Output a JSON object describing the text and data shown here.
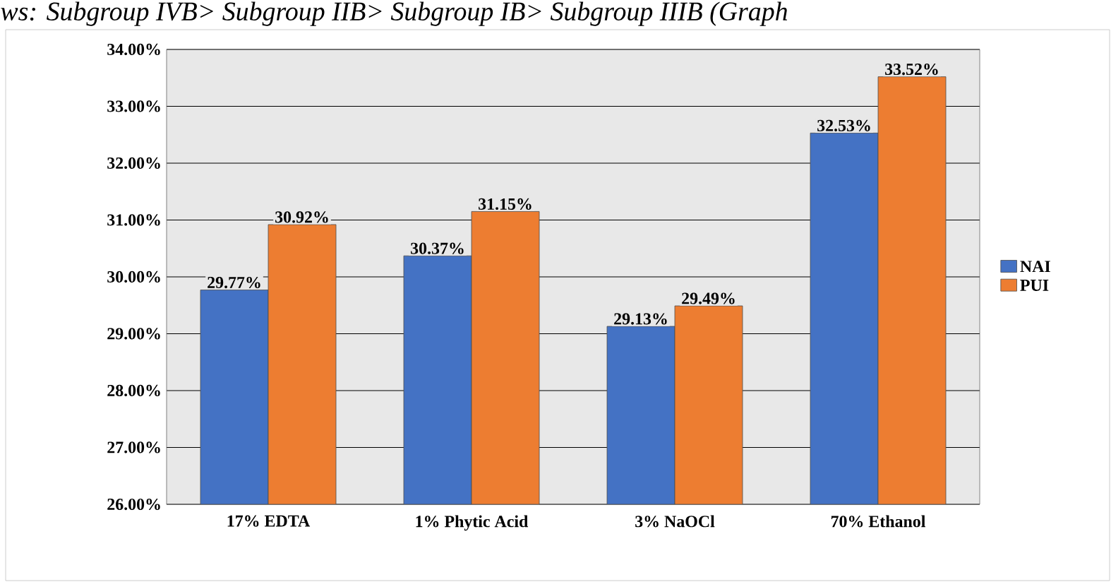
{
  "chart_data": {
    "type": "bar",
    "annotations": [
      "ws: Subgroup IVB> Subgroup IIB> Subgroup IB> Subgroup IIIB (Graph"
    ],
    "categories": [
      "17% EDTA",
      "1% Phytic Acid",
      "3% NaOCl",
      "70% Ethanol"
    ],
    "series": [
      {
        "name": "NAI",
        "color": "#4472c4",
        "values": [
          29.77,
          30.37,
          29.13,
          32.53
        ],
        "value_labels": [
          "29.77%",
          "30.37%",
          "29.13%",
          "32.53%"
        ]
      },
      {
        "name": "PUI",
        "color": "#ed7d31",
        "values": [
          30.92,
          31.15,
          29.49,
          33.52
        ],
        "value_labels": [
          "30.92%",
          "31.15%",
          "29.49%",
          "33.52%"
        ]
      }
    ],
    "ylim": [
      26,
      34
    ],
    "yticks": [
      {
        "value": 26,
        "label": "26.00%"
      },
      {
        "value": 27,
        "label": "27.00%"
      },
      {
        "value": 28,
        "label": "28.00%"
      },
      {
        "value": 29,
        "label": "29.00%"
      },
      {
        "value": 30,
        "label": "30.00%"
      },
      {
        "value": 31,
        "label": "31.00%"
      },
      {
        "value": 32,
        "label": "32.00%"
      },
      {
        "value": 33,
        "label": "33.00%"
      },
      {
        "value": 34,
        "label": "34.00%"
      }
    ],
    "grid": "y",
    "legend": "right"
  }
}
